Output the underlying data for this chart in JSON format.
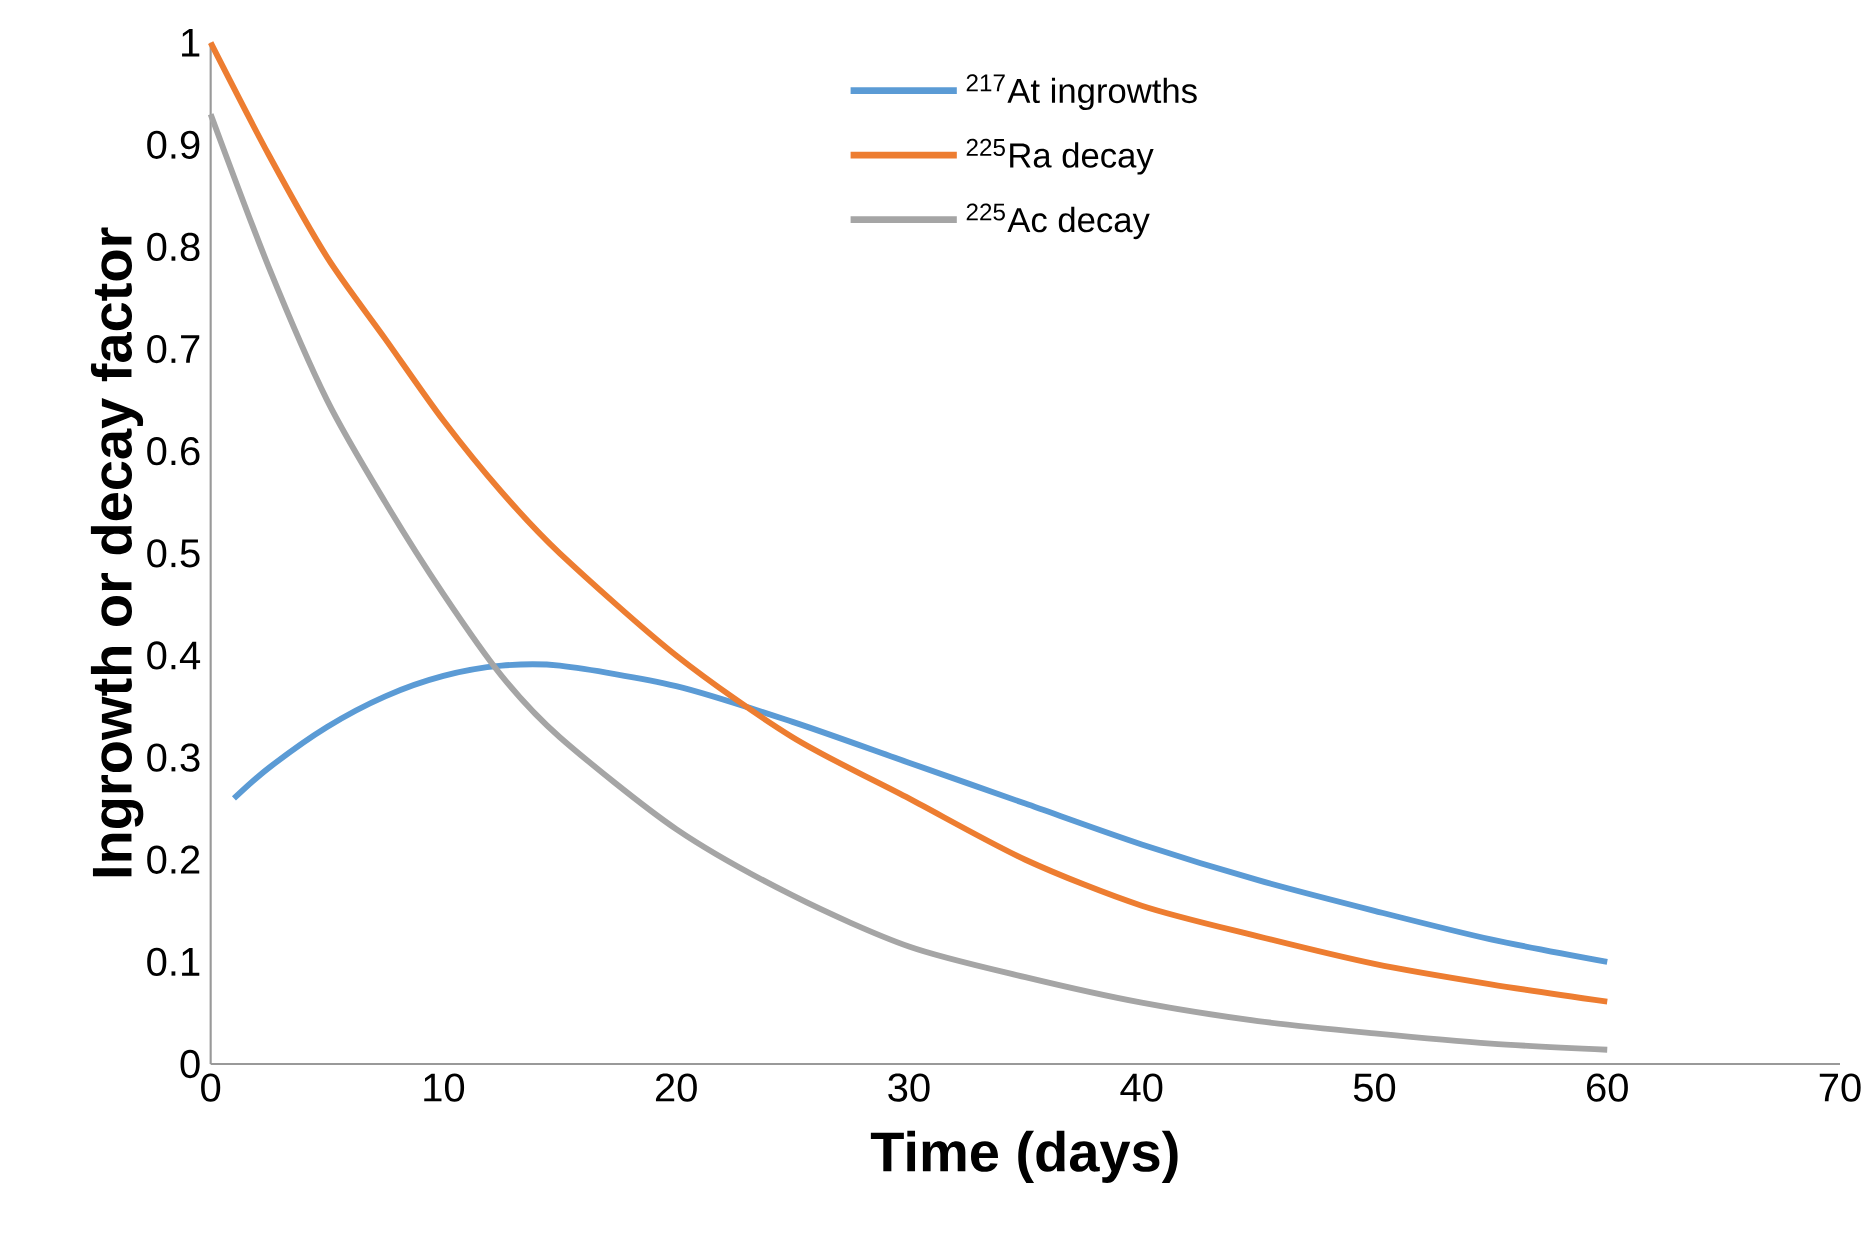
{
  "chart_data": {
    "type": "line",
    "xlabel": "Time (days)",
    "ylabel": "Ingrowth or decay factor",
    "xlim": [
      0,
      70
    ],
    "ylim": [
      0,
      1
    ],
    "xticks": [
      0,
      10,
      20,
      30,
      40,
      50,
      60,
      70
    ],
    "yticks": [
      0,
      0.1,
      0.2,
      0.3,
      0.4,
      0.5,
      0.6,
      0.7,
      0.8,
      0.9,
      1
    ],
    "legend": "top",
    "grid": false,
    "marker": "none",
    "line_style": "solid",
    "series": [
      {
        "name": "$^{217}$At ingrowths",
        "color": "#5b9bd5",
        "x": [
          1,
          2.5,
          5,
          7.5,
          10,
          12.5,
          15,
          20,
          25,
          30,
          35,
          40,
          45,
          50,
          55,
          60
        ],
        "values": [
          0.26,
          0.29,
          0.33,
          0.36,
          0.38,
          0.39,
          0.39,
          0.37,
          0.335,
          0.295,
          0.255,
          0.215,
          0.18,
          0.15,
          0.122,
          0.1
        ]
      },
      {
        "name": "$^{225}$Ra decay",
        "color": "#ed7d31",
        "x": [
          0,
          2.5,
          5,
          7.5,
          10,
          12.5,
          15,
          20,
          25,
          30,
          35,
          40,
          45,
          50,
          55,
          60
        ],
        "values": [
          1,
          0.89,
          0.79,
          0.71,
          0.63,
          0.56,
          0.5,
          0.4,
          0.32,
          0.26,
          0.2,
          0.155,
          0.125,
          0.098,
          0.078,
          0.061
        ]
      },
      {
        "name": "$^{225}$Ac decay",
        "color": "#a5a5a5",
        "x": [
          0,
          2.5,
          5,
          7.5,
          10,
          12.5,
          15,
          20,
          25,
          30,
          35,
          40,
          45,
          50,
          55,
          60
        ],
        "values": [
          0.93,
          0.78,
          0.65,
          0.55,
          0.46,
          0.38,
          0.32,
          0.23,
          0.165,
          0.115,
          0.085,
          0.06,
          0.042,
          0.03,
          0.02,
          0.014
        ]
      }
    ]
  }
}
